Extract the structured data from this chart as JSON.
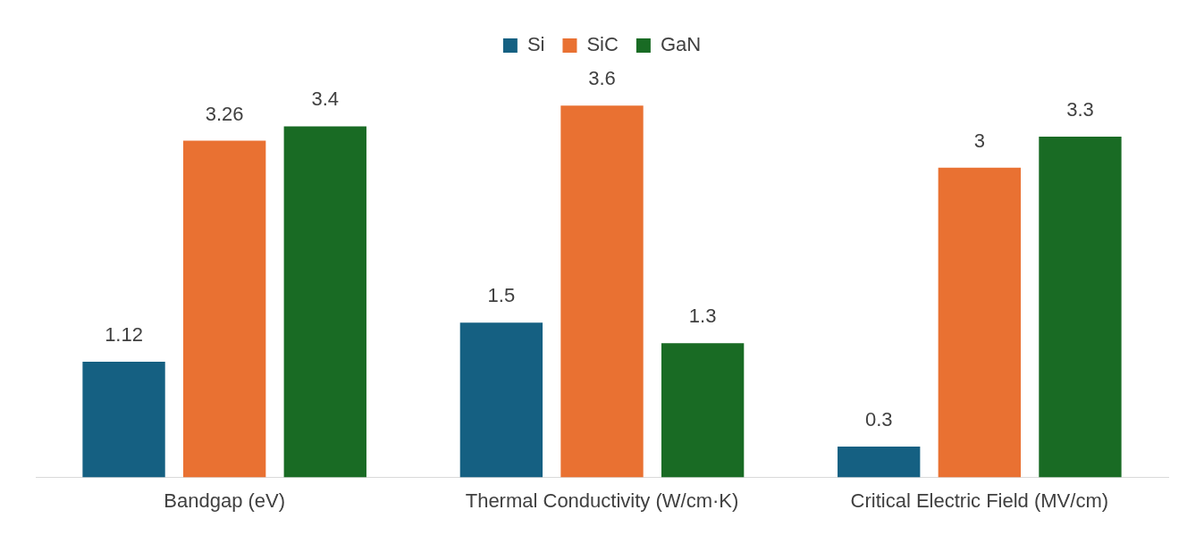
{
  "chart_data": {
    "type": "bar",
    "categories": [
      "Bandgap (eV)",
      "Thermal Conductivity (W/cm·K)",
      "Critical Electric Field (MV/cm)"
    ],
    "series": [
      {
        "name": "Si",
        "color": "#156082",
        "values": [
          1.12,
          1.5,
          0.3
        ]
      },
      {
        "name": "SiC",
        "color": "#e97132",
        "values": [
          3.26,
          3.6,
          3
        ]
      },
      {
        "name": "GaN",
        "color": "#196b24",
        "values": [
          3.4,
          1.3,
          3.3
        ]
      }
    ],
    "data_labels": true,
    "legend": "top",
    "grid": false,
    "tick_labels": "x"
  }
}
